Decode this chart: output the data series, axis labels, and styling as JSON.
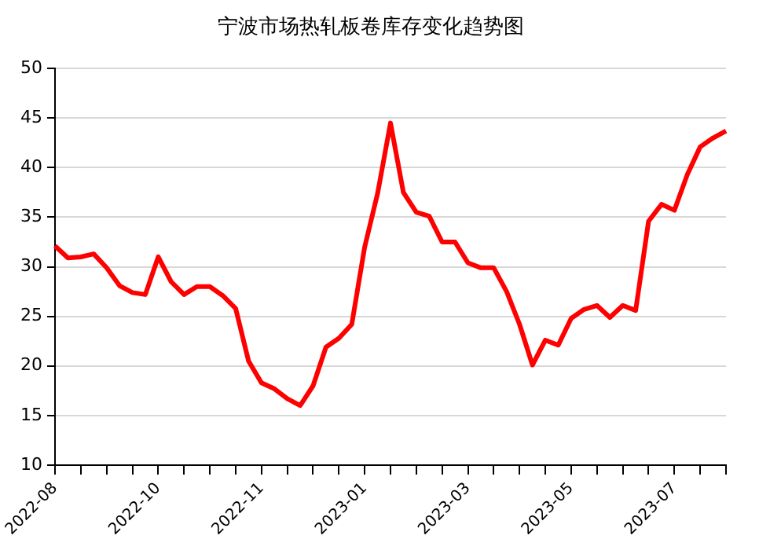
{
  "chart_data": {
    "type": "line",
    "title": "宁波市场热轧板卷库存变化趋势图",
    "categories": [
      "2022-08",
      null,
      null,
      null,
      null,
      null,
      null,
      null,
      "2022-10",
      null,
      null,
      null,
      null,
      null,
      null,
      null,
      "2022-11",
      null,
      null,
      null,
      null,
      null,
      null,
      null,
      "2023-01",
      null,
      null,
      null,
      null,
      null,
      null,
      null,
      "2023-03",
      null,
      null,
      null,
      null,
      null,
      null,
      null,
      "2023-05",
      null,
      null,
      null,
      null,
      null,
      null,
      null,
      "2023-07",
      null,
      null,
      null,
      null
    ],
    "series": [
      {
        "color": "#ff0000",
        "values": [
          32.1,
          30.9,
          31.0,
          31.3,
          29.9,
          28.1,
          27.4,
          27.2,
          31.0,
          28.5,
          27.2,
          28.0,
          28.0,
          27.1,
          25.8,
          20.5,
          18.3,
          17.7,
          16.7,
          16.0,
          18.0,
          21.9,
          22.8,
          24.2,
          32.0,
          37.4,
          44.5,
          37.5,
          35.5,
          35.1,
          32.5,
          32.5,
          30.4,
          29.9,
          29.9,
          27.5,
          24.2,
          20.1,
          22.6,
          22.1,
          24.8,
          25.7,
          26.1,
          24.9,
          26.1,
          25.6,
          34.6,
          36.3,
          35.7,
          39.3,
          42.1,
          43.0,
          43.7
        ]
      }
    ],
    "ylim": [
      10,
      50
    ],
    "yticks": [
      10,
      15,
      20,
      25,
      30,
      35,
      40,
      45,
      50
    ],
    "grid": "y",
    "marker": "none"
  }
}
